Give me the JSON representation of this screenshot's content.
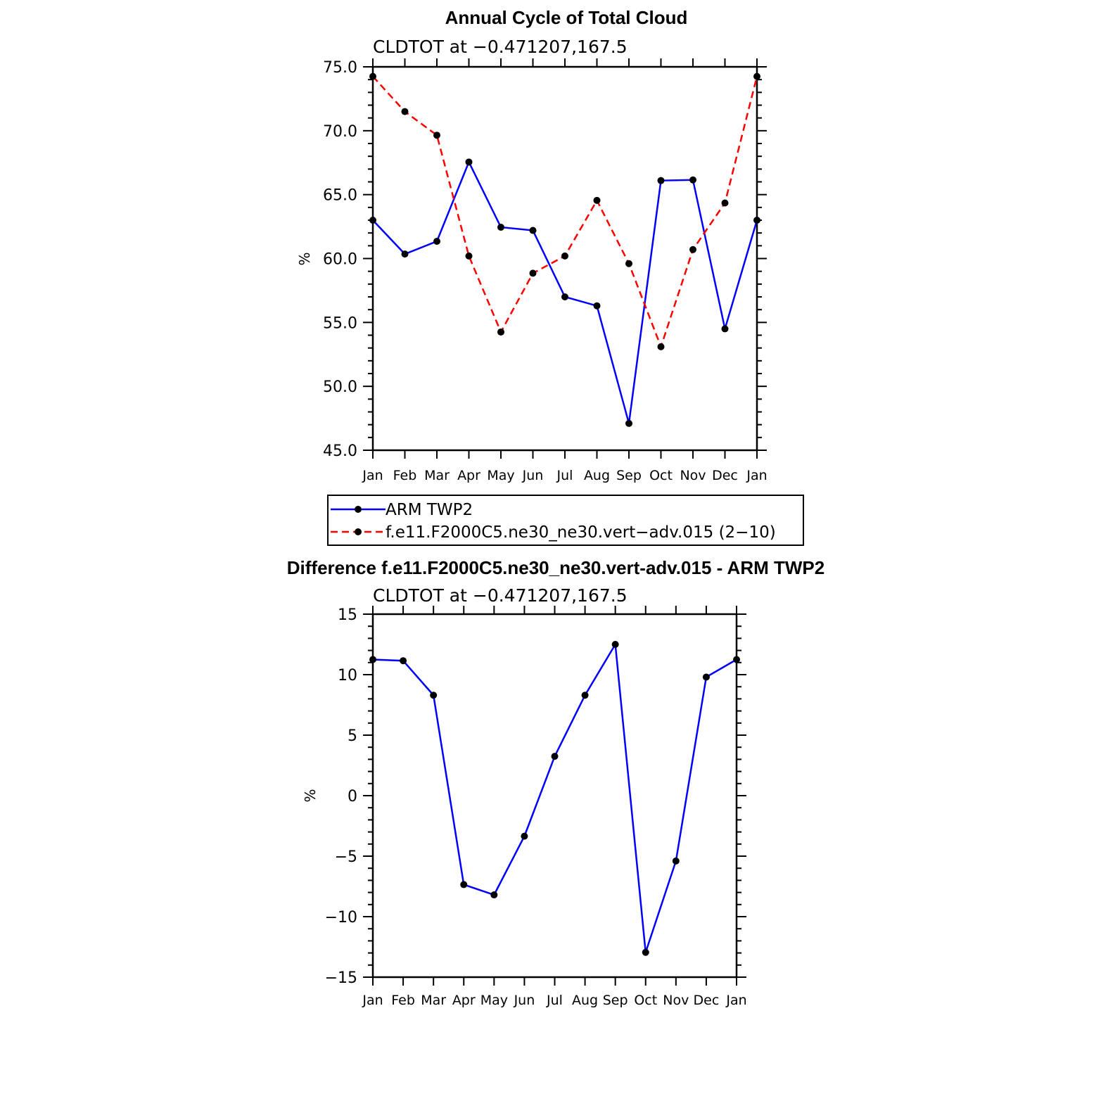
{
  "chart_data": [
    {
      "type": "line",
      "title": "Annual Cycle of Total Cloud",
      "subtitle": "CLDTOT at −0.471207,167.5",
      "xlabel": "",
      "ylabel": "%",
      "categories": [
        "Jan",
        "Feb",
        "Mar",
        "Apr",
        "May",
        "Jun",
        "Jul",
        "Aug",
        "Sep",
        "Oct",
        "Nov",
        "Dec",
        "Jan"
      ],
      "ylim": [
        45,
        75
      ],
      "yticks": [
        45,
        50,
        55,
        60,
        65,
        70,
        75
      ],
      "ytick_labels": [
        "45.0",
        "50.0",
        "55.0",
        "60.0",
        "65.0",
        "70.0",
        "75.0"
      ],
      "grid": false,
      "legend_position": "bottom",
      "series": [
        {
          "name": "ARM TWP2",
          "color": "#0000ff",
          "dash": "solid",
          "values": [
            63.0,
            60.35,
            61.35,
            67.55,
            62.45,
            62.2,
            57.0,
            56.3,
            47.1,
            66.1,
            66.15,
            54.5,
            63.0
          ]
        },
        {
          "name": "f.e11.F2000C5.ne30_ne30.vert−adv.015 (2−10)",
          "color": "#ff0000",
          "dash": "dashed",
          "values": [
            74.25,
            71.5,
            69.65,
            60.2,
            54.25,
            58.85,
            60.2,
            64.55,
            59.6,
            53.1,
            60.7,
            64.35,
            74.25
          ]
        }
      ]
    },
    {
      "type": "line",
      "title": "Difference f.e11.F2000C5.ne30_ne30.vert-adv.015 - ARM TWP2",
      "subtitle": "CLDTOT at −0.471207,167.5",
      "xlabel": "",
      "ylabel": "%",
      "categories": [
        "Jan",
        "Feb",
        "Mar",
        "Apr",
        "May",
        "Jun",
        "Jul",
        "Aug",
        "Sep",
        "Oct",
        "Nov",
        "Dec",
        "Jan"
      ],
      "ylim": [
        -15,
        15
      ],
      "yticks": [
        -15,
        -10,
        -5,
        0,
        5,
        10,
        15
      ],
      "ytick_labels": [
        "−15",
        "−10",
        "−5",
        "0",
        "5",
        "10",
        "15"
      ],
      "grid": false,
      "series": [
        {
          "name": "",
          "color": "#0000ff",
          "dash": "solid",
          "values": [
            11.25,
            11.15,
            8.3,
            -7.35,
            -8.2,
            -3.35,
            3.25,
            8.3,
            12.5,
            -12.95,
            -5.4,
            9.8,
            11.25
          ]
        }
      ]
    }
  ]
}
